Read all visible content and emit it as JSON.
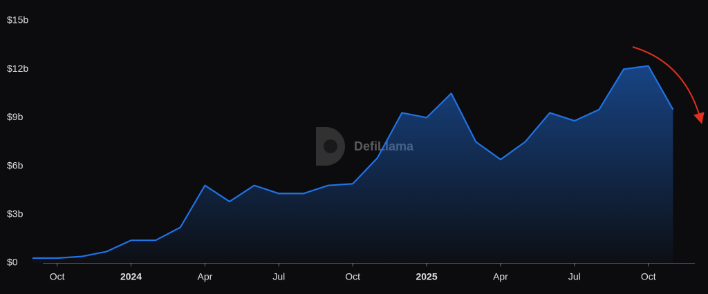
{
  "chart_data": {
    "type": "area",
    "watermark": "DefiLlama",
    "x": [
      "2023-09",
      "2023-10",
      "2023-11",
      "2023-12",
      "2024-01",
      "2024-02",
      "2024-03",
      "2024-04",
      "2024-05",
      "2024-06",
      "2024-07",
      "2024-08",
      "2024-09",
      "2024-10",
      "2024-11",
      "2024-12",
      "2025-01",
      "2025-02",
      "2025-03",
      "2025-04",
      "2025-05",
      "2025-06",
      "2025-07",
      "2025-08",
      "2025-09",
      "2025-10",
      "2025-11"
    ],
    "values": [
      0.3,
      0.3,
      0.4,
      0.7,
      1.4,
      1.4,
      2.2,
      4.8,
      3.8,
      4.8,
      4.3,
      4.3,
      4.8,
      4.9,
      6.5,
      9.3,
      9.0,
      10.5,
      7.5,
      6.4,
      7.5,
      9.3,
      8.8,
      9.5,
      12.0,
      12.2,
      9.5
    ],
    "color": "#2172e5",
    "xlim": [
      "2023-09",
      "2025-12"
    ],
    "xticks": [
      {
        "value": "2023-10",
        "label": "Oct"
      },
      {
        "value": "2024-01",
        "label": "2024"
      },
      {
        "value": "2024-04",
        "label": "Apr"
      },
      {
        "value": "2024-07",
        "label": "Jul"
      },
      {
        "value": "2024-10",
        "label": "Oct"
      },
      {
        "value": "2025-01",
        "label": "2025"
      },
      {
        "value": "2025-04",
        "label": "Apr"
      },
      {
        "value": "2025-07",
        "label": "Jul"
      },
      {
        "value": "2025-10",
        "label": "Oct"
      }
    ],
    "ylim": [
      0,
      15
    ],
    "yticks": [
      {
        "value": 0,
        "label": "$0"
      },
      {
        "value": 3,
        "label": "$3b"
      },
      {
        "value": 6,
        "label": "$6b"
      },
      {
        "value": 9,
        "label": "$9b"
      },
      {
        "value": 12,
        "label": "$12b"
      },
      {
        "value": 15,
        "label": "$15b"
      }
    ],
    "grid": false
  }
}
